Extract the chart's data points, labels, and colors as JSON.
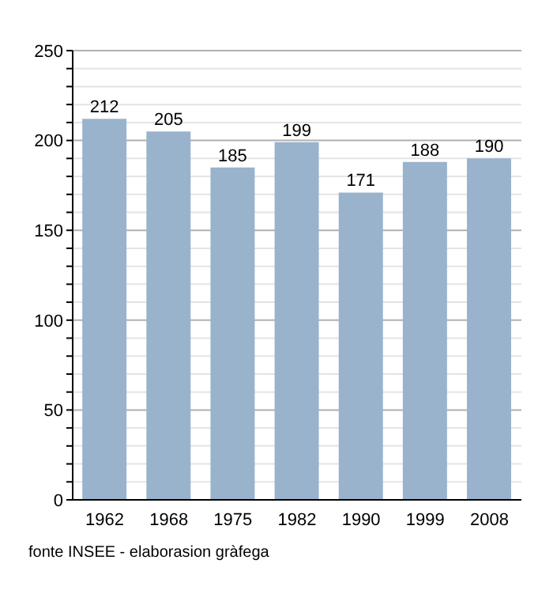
{
  "chart_data": {
    "type": "bar",
    "categories": [
      "1962",
      "1968",
      "1975",
      "1982",
      "1990",
      "1999",
      "2008"
    ],
    "values": [
      212,
      205,
      185,
      199,
      171,
      188,
      190
    ],
    "color": "#9ab3cc",
    "data_labels": true,
    "ylim": [
      0,
      250
    ],
    "yticks": [
      0,
      {
        "value": 10,
        "label": null
      },
      {
        "value": 20,
        "label": null
      },
      {
        "value": 30,
        "label": null
      },
      {
        "value": 40,
        "label": null
      },
      50,
      {
        "value": 60,
        "label": null
      },
      {
        "value": 70,
        "label": null
      },
      {
        "value": 80,
        "label": null
      },
      {
        "value": 90,
        "label": null
      },
      100,
      {
        "value": 110,
        "label": null
      },
      {
        "value": 120,
        "label": null
      },
      {
        "value": 130,
        "label": null
      },
      {
        "value": 140,
        "label": null
      },
      150,
      {
        "value": 160,
        "label": null
      },
      {
        "value": 170,
        "label": null
      },
      {
        "value": 180,
        "label": null
      },
      {
        "value": 190,
        "label": null
      },
      200,
      {
        "value": 210,
        "label": null
      },
      {
        "value": 220,
        "label": null
      },
      {
        "value": 230,
        "label": null
      },
      {
        "value": 240,
        "label": null
      },
      250
    ],
    "grid": "y",
    "annotations": [
      "fonte INSEE - elaborasion gràfega"
    ]
  }
}
